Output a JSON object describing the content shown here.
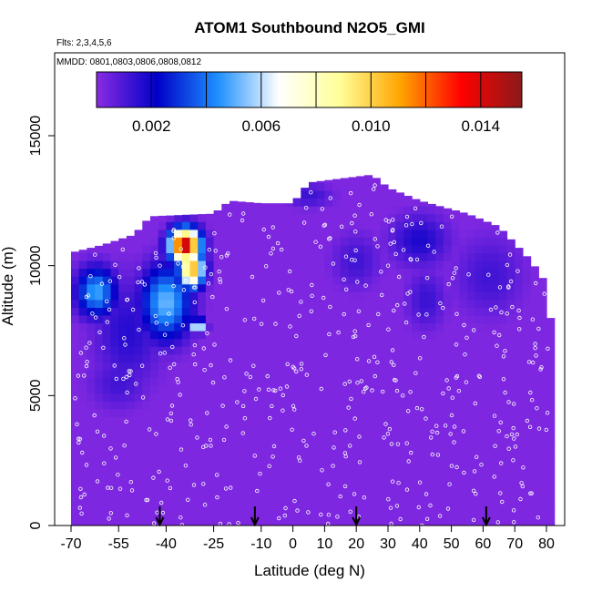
{
  "chart_data": {
    "type": "heatmap",
    "title": "ATOM1 Southbound N2O5_GMI",
    "notes": [
      "Flts: 2,3,4,5,6",
      "MMDD: 0801,0803,0806,0808,0812"
    ],
    "xlabel": "Latitude (deg N)",
    "ylabel": "Altitude (m)",
    "x_ticks": [
      "-70",
      "-55",
      "-40",
      "-25",
      "-10",
      "0",
      "10",
      "20",
      "30",
      "40",
      "50",
      "60",
      "70",
      "80"
    ],
    "y_ticks": [
      "0",
      "5000",
      "10000",
      "15000"
    ],
    "xlim": [
      -70,
      85
    ],
    "ylim": [
      0,
      17500
    ],
    "colorbar": {
      "ticks": [
        "0.002",
        "0.006",
        "0.010",
        "0.014"
      ],
      "tick_values": [
        0.002,
        0.006,
        0.01,
        0.014
      ],
      "range": [
        0.0,
        0.0155
      ],
      "colors": [
        "#8a2be2",
        "#0000c8",
        "#1e90ff",
        "#ffffff",
        "#ffff99",
        "#ffa500",
        "#ff0000",
        "#8b1a1a"
      ]
    },
    "profile_max_altitude": [
      {
        "lat": -70,
        "alt": 10500
      },
      {
        "lat": -60,
        "alt": 10800
      },
      {
        "lat": -50,
        "alt": 11200
      },
      {
        "lat": -45,
        "alt": 11900
      },
      {
        "lat": -25,
        "alt": 12000
      },
      {
        "lat": -20,
        "alt": 12500
      },
      {
        "lat": -10,
        "alt": 12400
      },
      {
        "lat": 0,
        "alt": 12400
      },
      {
        "lat": 5,
        "alt": 13200
      },
      {
        "lat": 25,
        "alt": 13500
      },
      {
        "lat": 30,
        "alt": 13000
      },
      {
        "lat": 40,
        "alt": 12500
      },
      {
        "lat": 55,
        "alt": 12000
      },
      {
        "lat": 65,
        "alt": 11500
      },
      {
        "lat": 75,
        "alt": 10200
      },
      {
        "lat": 80,
        "alt": 9300
      },
      {
        "lat": 82,
        "alt": 7200
      },
      {
        "lat": 82,
        "alt": 0
      }
    ],
    "blobs": [
      {
        "lat": -52,
        "alt": 7500,
        "rlat": 14,
        "ralt": 2800,
        "value": 0.0016
      },
      {
        "lat": -62,
        "alt": 9000,
        "rlat": 8,
        "ralt": 1200,
        "value": 0.0048
      },
      {
        "lat": -40,
        "alt": 8600,
        "rlat": 10,
        "ralt": 1800,
        "value": 0.0052
      },
      {
        "lat": -34,
        "alt": 10800,
        "rlat": 6,
        "ralt": 800,
        "value": 0.015
      },
      {
        "lat": -32,
        "alt": 9900,
        "rlat": 5,
        "ralt": 900,
        "value": 0.011
      },
      {
        "lat": -30,
        "alt": 7700,
        "rlat": 3,
        "ralt": 300,
        "value": 0.008
      },
      {
        "lat": -55,
        "alt": 5500,
        "rlat": 12,
        "ralt": 1300,
        "value": 0.0012
      },
      {
        "lat": 5,
        "alt": 12700,
        "rlat": 10,
        "ralt": 600,
        "value": 0.0013
      },
      {
        "lat": 20,
        "alt": 10200,
        "rlat": 10,
        "ralt": 1400,
        "value": 0.0012
      },
      {
        "lat": 40,
        "alt": 11000,
        "rlat": 12,
        "ralt": 1300,
        "value": 0.0018
      },
      {
        "lat": 42,
        "alt": 8700,
        "rlat": 8,
        "ralt": 1500,
        "value": 0.0013
      },
      {
        "lat": 62,
        "alt": 9600,
        "rlat": 14,
        "ralt": 2000,
        "value": 0.0012
      }
    ],
    "arrow_latitudes": [
      -42,
      -12,
      20,
      61
    ]
  }
}
